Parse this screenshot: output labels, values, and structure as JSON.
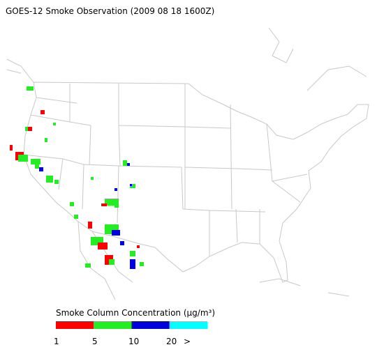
{
  "title": "GOES-12 Smoke Observation (2009 08 18  1600Z)",
  "legend": {
    "title": "Smoke Column Concentration (μg/m³)",
    "colors": [
      "#ff0000",
      "#22ee22",
      "#0000dd",
      "#00ffff"
    ],
    "ticks": [
      "1",
      "5",
      "10",
      "20",
      ">"
    ]
  }
}
